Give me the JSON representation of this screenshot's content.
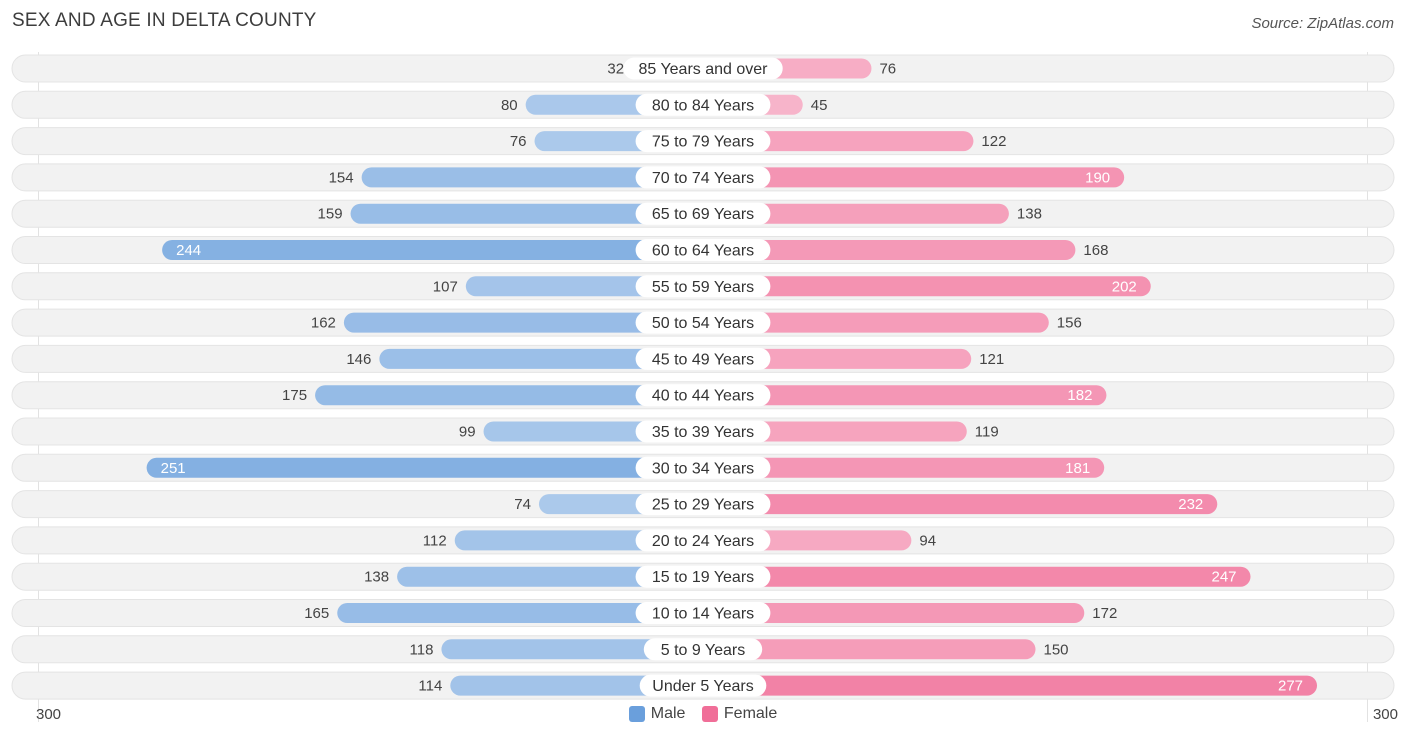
{
  "title": "SEX AND AGE IN DELTA COUNTY",
  "source": "Source: ZipAtlas.com",
  "axis": {
    "left_label": "300",
    "right_label": "300"
  },
  "legend": {
    "male_label": "Male",
    "female_label": "Female"
  },
  "colors": {
    "male": "#6a9fdc",
    "female": "#f06e98",
    "row_bg": "#f0f0f0"
  },
  "chart_data": {
    "type": "bar",
    "orientation": "horizontal-diverging",
    "title": "SEX AND AGE IN DELTA COUNTY",
    "xlim": [
      0,
      300
    ],
    "categories": [
      "85 Years and over",
      "80 to 84 Years",
      "75 to 79 Years",
      "70 to 74 Years",
      "65 to 69 Years",
      "60 to 64 Years",
      "55 to 59 Years",
      "50 to 54 Years",
      "45 to 49 Years",
      "40 to 44 Years",
      "35 to 39 Years",
      "30 to 34 Years",
      "25 to 29 Years",
      "20 to 24 Years",
      "15 to 19 Years",
      "10 to 14 Years",
      "5 to 9 Years",
      "Under 5 Years"
    ],
    "series": [
      {
        "name": "Male",
        "values": [
          32,
          80,
          76,
          154,
          159,
          244,
          107,
          162,
          146,
          175,
          99,
          251,
          74,
          112,
          138,
          165,
          118,
          114
        ]
      },
      {
        "name": "Female",
        "values": [
          76,
          45,
          122,
          190,
          138,
          168,
          202,
          156,
          121,
          182,
          119,
          181,
          232,
          94,
          247,
          172,
          150,
          277
        ]
      }
    ],
    "legend_position": "bottom-center"
  }
}
